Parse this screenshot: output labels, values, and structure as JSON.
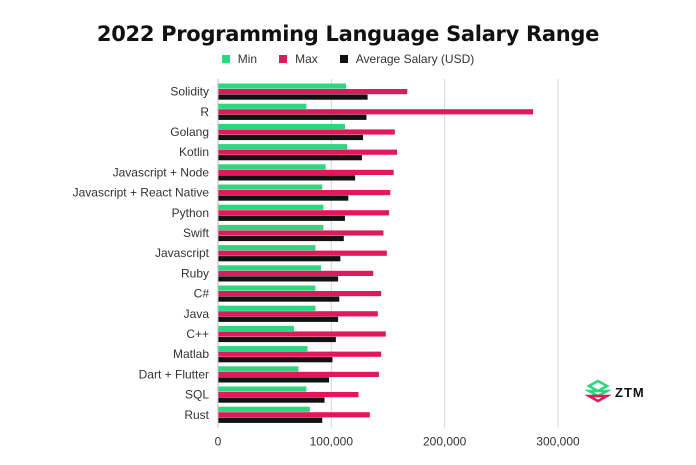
{
  "chart_data": {
    "type": "bar",
    "orientation": "horizontal",
    "title": "2022 Programming Language Salary Range",
    "categories": [
      "Solidity",
      "R",
      "Golang",
      "Kotlin",
      "Javascript + Node",
      "Javascript + React Native",
      "Python",
      "Swift",
      "Javascript",
      "Ruby",
      "C#",
      "Java",
      "C++",
      "Matlab",
      "Dart + Flutter",
      "SQL",
      "Rust"
    ],
    "series": [
      {
        "name": "Min",
        "color": "#2ed67e",
        "values": [
          113000,
          78000,
          112000,
          114000,
          95000,
          92000,
          93000,
          93000,
          86000,
          91000,
          86000,
          86000,
          67000,
          79000,
          71000,
          78000,
          81000
        ]
      },
      {
        "name": "Max",
        "color": "#e0195c",
        "values": [
          167000,
          278000,
          156000,
          158000,
          155000,
          152000,
          151000,
          146000,
          149000,
          137000,
          144000,
          141000,
          148000,
          144000,
          142000,
          124000,
          134000
        ]
      },
      {
        "name": "Average Salary (USD)",
        "color": "#111111",
        "values": [
          132000,
          131000,
          128000,
          127000,
          121000,
          115000,
          112000,
          111000,
          108000,
          106000,
          107000,
          106000,
          104000,
          101000,
          98000,
          94000,
          92000
        ]
      }
    ],
    "xlim": [
      0,
      300000
    ],
    "xticks": [
      0,
      100000,
      200000,
      300000
    ],
    "xtick_labels": [
      "0",
      "100,000",
      "200,000",
      "300,000"
    ],
    "grid": true,
    "legend_position": "top-center"
  },
  "logo": {
    "text": "ZTM"
  }
}
